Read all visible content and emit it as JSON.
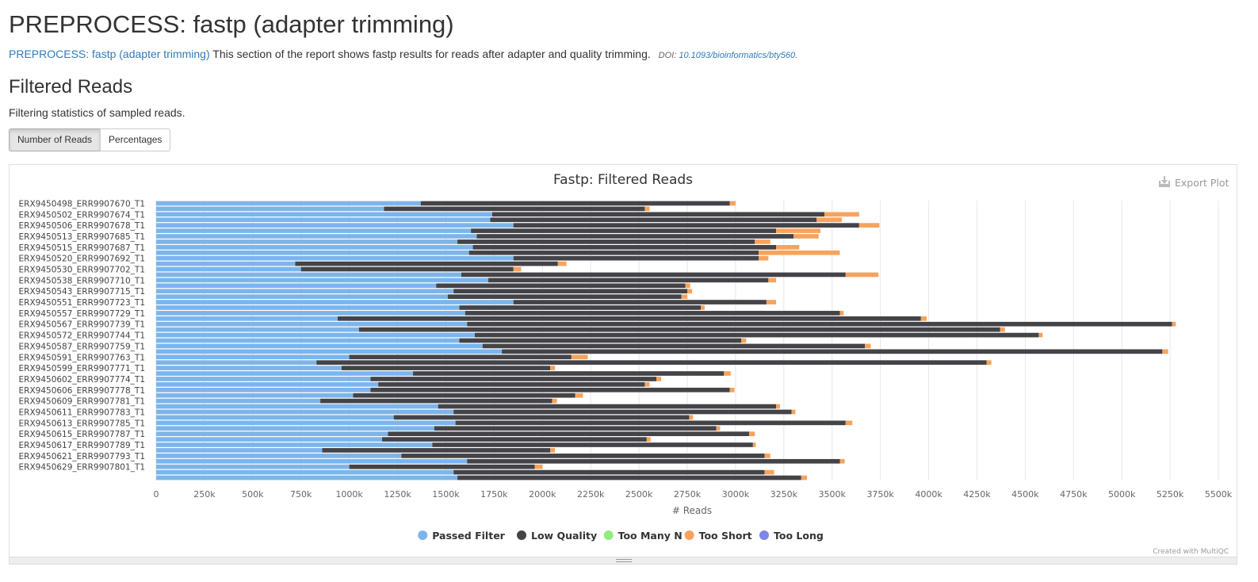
{
  "page": {
    "title": "PREPROCESS: fastp (adapter trimming)",
    "intro_link": "PREPROCESS: fastp (adapter trimming)",
    "intro_text": " This section of the report shows fastp results for reads after adapter and quality trimming.",
    "doi_label": "DOI:",
    "doi_link": "10.1093/bioinformatics/bty560.",
    "section_title": "Filtered Reads",
    "section_desc": "Filtering statistics of sampled reads.",
    "buttons": {
      "reads": "Number of Reads",
      "percentages": "Percentages"
    },
    "export_label": "Export Plot",
    "credit": "Created with MultiQC"
  },
  "colors": {
    "passed": "#7cb5ec",
    "low_quality": "#434348",
    "too_many_n": "#90ed7d",
    "too_short": "#f7a35c",
    "too_long": "#8085e9"
  },
  "chart_data": {
    "type": "bar",
    "orientation": "horizontal",
    "stacked": true,
    "title": "Fastp: Filtered Reads",
    "xlabel": "# Reads",
    "xlim": [
      0,
      5500000
    ],
    "xticks": [
      "0",
      "250k",
      "500k",
      "750k",
      "1000k",
      "1250k",
      "1500k",
      "1750k",
      "2000k",
      "2250k",
      "2500k",
      "2750k",
      "3000k",
      "3250k",
      "3500k",
      "3750k",
      "4000k",
      "4250k",
      "4500k",
      "4750k",
      "5000k",
      "5250k",
      "5500k"
    ],
    "grid": true,
    "legend_position": "bottom",
    "labels_shown": [
      "ERX9450498_ERR9907670_T1",
      "ERX9450502_ERR9907674_T1",
      "ERX9450506_ERR9907678_T1",
      "ERX9450513_ERR9907685_T1",
      "ERX9450515_ERR9907687_T1",
      "ERX9450520_ERR9907692_T1",
      "ERX9450530_ERR9907702_T1",
      "ERX9450538_ERR9907710_T1",
      "ERX9450543_ERR9907715_T1",
      "ERX9450551_ERR9907723_T1",
      "ERX9450557_ERR9907729_T1",
      "ERX9450567_ERR9907739_T1",
      "ERX9450572_ERR9907744_T1",
      "ERX9450587_ERR9907759_T1",
      "ERX9450591_ERR9907763_T1",
      "ERX9450599_ERR9907771_T1",
      "ERX9450602_ERR9907774_T1",
      "ERX9450606_ERR9907778_T1",
      "ERX9450609_ERR9907781_T1",
      "ERX9450611_ERR9907783_T1",
      "ERX9450613_ERR9907785_T1",
      "ERX9450615_ERR9907787_T1",
      "ERX9450617_ERR9907789_T1",
      "ERX9450621_ERR9907793_T1",
      "ERX9450629_ERR9907801_T1"
    ],
    "series": [
      {
        "name": "Passed Filter",
        "color": "#7cb5ec",
        "values": [
          1370000,
          1180000,
          1740000,
          1730000,
          1850000,
          1630000,
          1660000,
          1560000,
          1640000,
          1620000,
          1850000,
          720000,
          750000,
          1580000,
          1720000,
          1450000,
          1540000,
          1510000,
          1850000,
          1570000,
          1600000,
          940000,
          1610000,
          1050000,
          1650000,
          1570000,
          1690000,
          1790000,
          1000000,
          830000,
          960000,
          1330000,
          1110000,
          1150000,
          1110000,
          1020000,
          850000,
          1460000,
          1540000,
          1230000,
          1550000,
          1440000,
          1200000,
          1170000,
          1430000,
          860000,
          1270000,
          1610000,
          1000000,
          1540000,
          1560000
        ]
      },
      {
        "name": "Low Quality",
        "color": "#434348",
        "values": [
          1600000,
          1350000,
          1720000,
          1690000,
          1790000,
          1580000,
          1640000,
          1540000,
          1570000,
          1500000,
          1270000,
          1360000,
          1100000,
          1990000,
          1450000,
          1290000,
          1210000,
          1210000,
          1310000,
          1250000,
          1940000,
          3020000,
          3650000,
          3320000,
          2920000,
          1460000,
          1980000,
          3420000,
          1150000,
          3470000,
          1080000,
          1610000,
          1480000,
          1380000,
          1860000,
          1150000,
          1200000,
          1750000,
          1750000,
          1530000,
          2020000,
          1460000,
          1870000,
          1370000,
          1660000,
          1180000,
          1880000,
          1930000,
          960000,
          1610000,
          1780000
        ]
      },
      {
        "name": "Too Many N",
        "color": "#90ed7d",
        "values": [
          0,
          0,
          0,
          0,
          0,
          0,
          0,
          0,
          0,
          0,
          0,
          0,
          0,
          0,
          0,
          0,
          0,
          0,
          0,
          0,
          0,
          0,
          0,
          0,
          0,
          0,
          0,
          0,
          0,
          0,
          0,
          0,
          0,
          0,
          0,
          0,
          0,
          0,
          0,
          0,
          0,
          0,
          0,
          0,
          0,
          0,
          0,
          0,
          0,
          0,
          0
        ]
      },
      {
        "name": "Too Short",
        "color": "#f7a35c",
        "values": [
          30000,
          25000,
          180000,
          130000,
          105000,
          230000,
          130000,
          80000,
          120000,
          420000,
          50000,
          45000,
          40000,
          170000,
          40000,
          25000,
          25000,
          30000,
          50000,
          20000,
          20000,
          30000,
          20000,
          25000,
          20000,
          25000,
          30000,
          30000,
          85000,
          25000,
          25000,
          35000,
          25000,
          25000,
          25000,
          40000,
          25000,
          20000,
          20000,
          20000,
          35000,
          20000,
          30000,
          20000,
          15000,
          25000,
          30000,
          25000,
          40000,
          50000,
          30000
        ]
      },
      {
        "name": "Too Long",
        "color": "#8085e9",
        "values": [
          0,
          0,
          0,
          0,
          0,
          0,
          0,
          0,
          0,
          0,
          0,
          0,
          0,
          0,
          0,
          0,
          0,
          0,
          0,
          0,
          0,
          0,
          0,
          0,
          0,
          0,
          0,
          0,
          0,
          0,
          0,
          0,
          0,
          0,
          0,
          0,
          0,
          0,
          0,
          0,
          0,
          0,
          0,
          0,
          0,
          0,
          0,
          0,
          0,
          0,
          0
        ]
      }
    ]
  }
}
